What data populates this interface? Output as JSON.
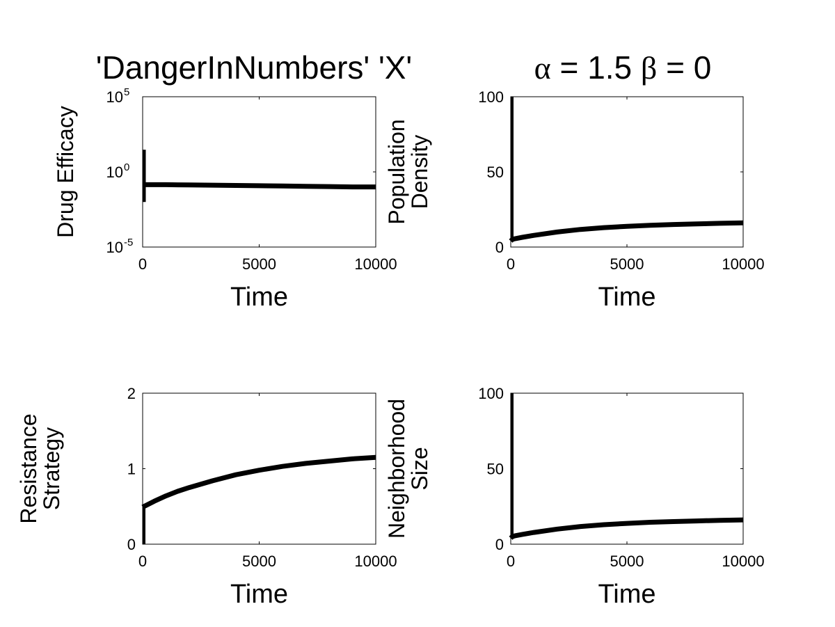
{
  "chart_data": [
    {
      "type": "line",
      "title": "'DangerInNumbers' 'X'",
      "xlabel": "Time",
      "ylabel": "Drug Efficacy",
      "yscale": "log",
      "xlim": [
        0,
        10000
      ],
      "ylim": [
        1e-05,
        100000
      ],
      "xticks": [
        "0",
        "5000",
        "10000"
      ],
      "yticks": [
        {
          "value": 1e-05,
          "base": "10",
          "exp": "-5"
        },
        {
          "value": 1,
          "base": "10",
          "exp": "0"
        },
        {
          "value": 100000,
          "base": "10",
          "exp": "5"
        }
      ],
      "spike": {
        "x": 15,
        "from": 0.01,
        "to": 30
      },
      "x": [
        100,
        1000,
        2000,
        3000,
        4000,
        5000,
        6000,
        7000,
        8000,
        9000,
        10000
      ],
      "y": [
        0.14,
        0.14,
        0.135,
        0.13,
        0.125,
        0.12,
        0.115,
        0.11,
        0.105,
        0.1,
        0.1
      ]
    },
    {
      "type": "line",
      "title": "",
      "xlabel": "Time",
      "ylabel": "Population Density",
      "ylabel_lines": [
        "Population",
        "Density"
      ],
      "yscale": "linear",
      "xlim": [
        0,
        10000
      ],
      "ylim": [
        0,
        100
      ],
      "xticks": [
        "0",
        "5000",
        "10000"
      ],
      "yticks": [
        {
          "value": 0,
          "label": "0"
        },
        {
          "value": 50,
          "label": "50"
        },
        {
          "value": 100,
          "label": "100"
        }
      ],
      "spike": {
        "x": 0,
        "from": 4,
        "to": 100
      },
      "x": [
        0,
        50,
        100,
        200,
        500,
        1000,
        2000,
        3000,
        4000,
        5000,
        6000,
        7000,
        8000,
        9000,
        10000
      ],
      "y": [
        4,
        4.8,
        5.2,
        5.6,
        6.5,
        7.8,
        10,
        11.7,
        12.9,
        13.8,
        14.5,
        15.0,
        15.4,
        15.8,
        16.1
      ]
    },
    {
      "type": "line",
      "title": "",
      "xlabel": "Time",
      "ylabel": "Resistance Strategy",
      "ylabel_lines": [
        "Resistance",
        "Strategy"
      ],
      "yscale": "linear",
      "xlim": [
        0,
        10000
      ],
      "ylim": [
        0,
        2
      ],
      "xticks": [
        "0",
        "5000",
        "10000"
      ],
      "yticks": [
        {
          "value": 0,
          "label": "0"
        },
        {
          "value": 1,
          "label": "1"
        },
        {
          "value": 2,
          "label": "2"
        }
      ],
      "spike": {
        "x": 0,
        "from": 0,
        "to": 0.5
      },
      "x": [
        0,
        500,
        1000,
        1500,
        2000,
        3000,
        4000,
        5000,
        6000,
        7000,
        8000,
        9000,
        10000
      ],
      "y": [
        0.49,
        0.57,
        0.64,
        0.7,
        0.75,
        0.84,
        0.92,
        0.98,
        1.03,
        1.07,
        1.1,
        1.13,
        1.15
      ]
    },
    {
      "type": "line",
      "title": "",
      "xlabel": "Time",
      "ylabel": "Neighborhood Size",
      "ylabel_lines": [
        "Neighborhood",
        "Size"
      ],
      "yscale": "linear",
      "xlim": [
        0,
        10000
      ],
      "ylim": [
        0,
        100
      ],
      "xticks": [
        "0",
        "5000",
        "10000"
      ],
      "yticks": [
        {
          "value": 0,
          "label": "0"
        },
        {
          "value": 50,
          "label": "50"
        },
        {
          "value": 100,
          "label": "100"
        }
      ],
      "spike": {
        "x": 0,
        "from": 4,
        "to": 100
      },
      "x": [
        0,
        50,
        100,
        200,
        500,
        1000,
        2000,
        3000,
        4000,
        5000,
        6000,
        7000,
        8000,
        9000,
        10000
      ],
      "y": [
        4,
        4.8,
        5.2,
        5.6,
        6.5,
        7.8,
        10,
        11.7,
        12.9,
        13.8,
        14.5,
        15.0,
        15.4,
        15.8,
        16.1
      ]
    }
  ],
  "header_right": {
    "alpha_symbol": "α",
    "alpha_value": " = 1.5 ",
    "beta_symbol": "β",
    "beta_value": " = 0"
  }
}
